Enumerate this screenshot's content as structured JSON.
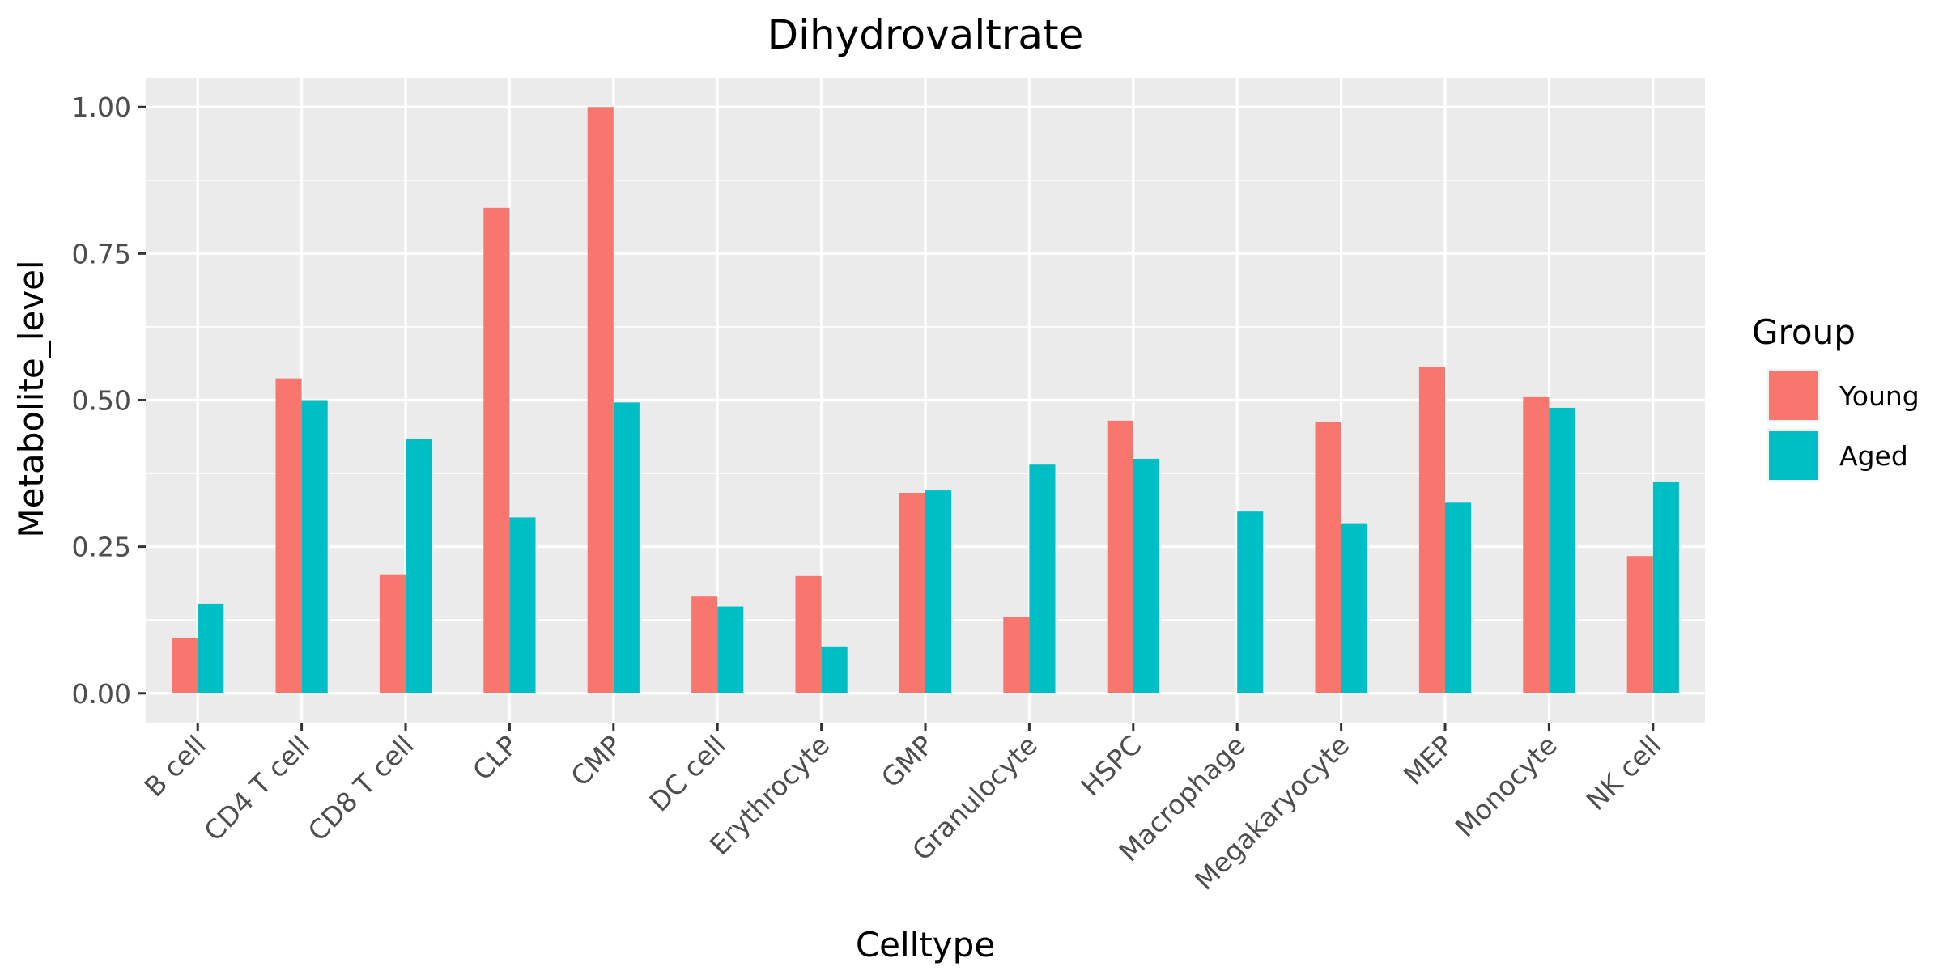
{
  "chart_data": {
    "type": "bar",
    "title": "Dihydrovaltrate",
    "xlabel": "Celltype",
    "ylabel": "Metabolite_level",
    "ylim": [
      -0.05,
      1.05
    ],
    "yticks": [
      "0.00",
      "0.25",
      "0.50",
      "0.75",
      "1.00"
    ],
    "ytick_values": [
      0,
      0.25,
      0.5,
      0.75,
      1.0
    ],
    "categories": [
      "B cell",
      "CD4 T cell",
      "CD8 T cell",
      "CLP",
      "CMP",
      "DC cell",
      "Erythrocyte",
      "GMP",
      "Granulocyte",
      "HSPC",
      "Macrophage",
      "Megakaryocyte",
      "MEP",
      "Monocyte",
      "NK cell"
    ],
    "series": [
      {
        "name": "Young",
        "color": "#F8766D",
        "values": [
          0.095,
          0.537,
          0.203,
          0.828,
          1.0,
          0.165,
          0.2,
          0.342,
          0.13,
          0.465,
          null,
          0.463,
          0.556,
          0.505,
          0.234
        ]
      },
      {
        "name": "Aged",
        "color": "#00BFC4",
        "values": [
          0.153,
          0.5,
          0.434,
          0.3,
          0.496,
          0.148,
          0.08,
          0.346,
          0.39,
          0.4,
          0.31,
          0.29,
          0.325,
          0.487,
          0.36
        ]
      }
    ],
    "legend": {
      "title": "Group",
      "position": "right"
    },
    "grid": true,
    "panel_background": "#EBEBEB"
  }
}
